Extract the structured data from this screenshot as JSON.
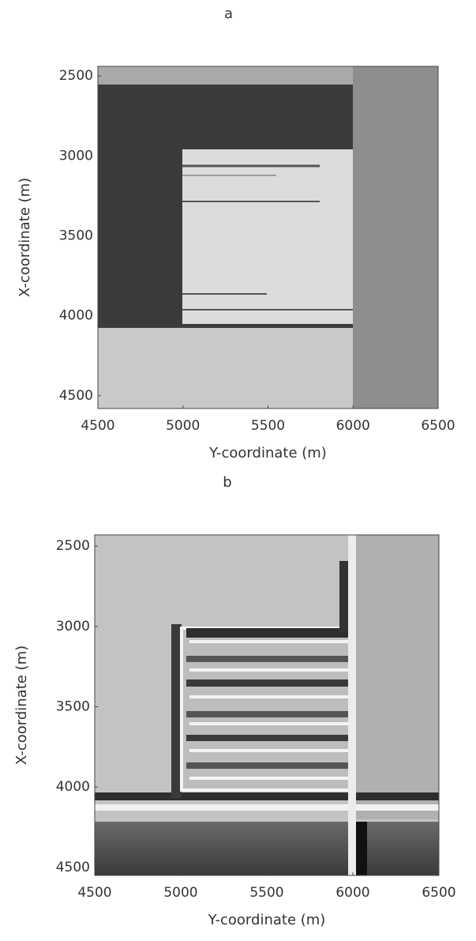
{
  "chart_data": [
    {
      "type": "image",
      "title": "a",
      "xlabel": "Y-coordinate (m)",
      "ylabel": "X-coordinate (m)",
      "xlim": [
        4500,
        6500
      ],
      "xticks": [
        4500,
        5000,
        5500,
        6000,
        6500
      ],
      "ylim": [
        2440,
        4580
      ],
      "yticks": [
        2500,
        3000,
        3500,
        4000,
        4500
      ]
    },
    {
      "type": "image",
      "title": "b",
      "xlabel": "Y-coordinate (m)",
      "ylabel": "X-coordinate (m)",
      "xlim": [
        4500,
        6500
      ],
      "xticks": [
        4500,
        5000,
        5500,
        6000,
        6500
      ],
      "ylim": [
        2430,
        4550
      ],
      "yticks": [
        2500,
        3000,
        3500,
        4000,
        4500
      ]
    }
  ]
}
